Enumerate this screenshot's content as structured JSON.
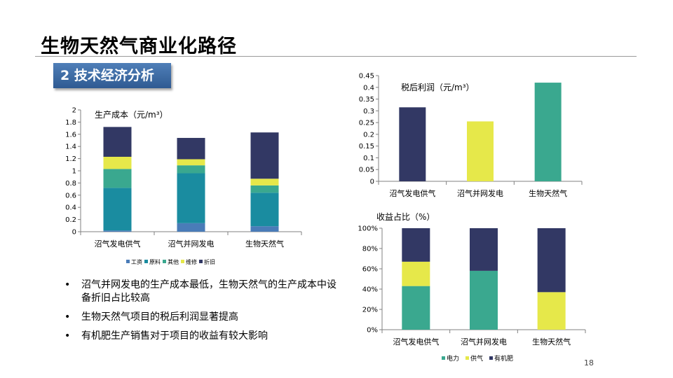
{
  "page": {
    "title": "生物天然气商业化路径",
    "section": "2  技术经济分析",
    "page_number": "18"
  },
  "bullets": [
    "沼气并网发电的生产成本最低，生物天然气的生产成本中设备折旧占比较高",
    "生物天然气项目的税后利润显著提高",
    "有机肥生产销售对于项目的收益有较大影响"
  ],
  "colors": {
    "navy": "#323864",
    "teal_dark": "#1a8ca0",
    "teal_mid": "#3aa88f",
    "yellow": "#e6e84a",
    "blue": "#4a7cb8"
  },
  "chart_data": [
    {
      "id": "cost",
      "type": "bar",
      "stacked": true,
      "title": "生产成本（元/m³）",
      "categories": [
        "沼气发电供气",
        "沼气并网发电",
        "生物天然气"
      ],
      "ylim": [
        0,
        2
      ],
      "yticks": [
        "0",
        "0.2",
        "0.4",
        "0.6",
        "0.8",
        "1",
        "1.2",
        "1.4",
        "1.6",
        "1.8",
        "2"
      ],
      "legend_position": "bottom",
      "series": [
        {
          "name": "工资",
          "color": "#4a7cb8",
          "values": [
            0.02,
            0.14,
            0.09
          ]
        },
        {
          "name": "原料",
          "color": "#1a8ca0",
          "values": [
            0.7,
            0.82,
            0.55
          ]
        },
        {
          "name": "其他",
          "color": "#3aa88f",
          "values": [
            0.31,
            0.13,
            0.12
          ]
        },
        {
          "name": "维修",
          "color": "#e6e84a",
          "values": [
            0.2,
            0.1,
            0.11
          ]
        },
        {
          "name": "折旧",
          "color": "#323864",
          "values": [
            0.49,
            0.35,
            0.76
          ]
        }
      ]
    },
    {
      "id": "profit",
      "type": "bar",
      "title": "税后利润（元/m³）",
      "categories": [
        "沼气发电供气",
        "沼气并网发电",
        "生物天然气"
      ],
      "ylim": [
        0,
        0.45
      ],
      "yticks": [
        "0",
        "0.05",
        "0.1",
        "0.15",
        "0.2",
        "0.25",
        "0.3",
        "0.35",
        "0.4",
        "0.45"
      ],
      "values": [
        0.315,
        0.255,
        0.42
      ],
      "bar_colors": [
        "#323864",
        "#e6e84a",
        "#3aa88f"
      ]
    },
    {
      "id": "revenue",
      "type": "bar",
      "stacked": true,
      "title": "收益占比（%）",
      "categories": [
        "沼气发电供气",
        "沼气并网发电",
        "生物天然气"
      ],
      "ylim": [
        0,
        100
      ],
      "yticks": [
        "0%",
        "20%",
        "40%",
        "60%",
        "80%",
        "100%"
      ],
      "legend_position": "bottom",
      "series": [
        {
          "name": "电力",
          "color": "#3aa88f",
          "values": [
            43,
            58,
            0
          ]
        },
        {
          "name": "供气",
          "color": "#e6e84a",
          "values": [
            24,
            0,
            37
          ]
        },
        {
          "name": "有机肥",
          "color": "#323864",
          "values": [
            33,
            42,
            63
          ]
        }
      ]
    }
  ]
}
